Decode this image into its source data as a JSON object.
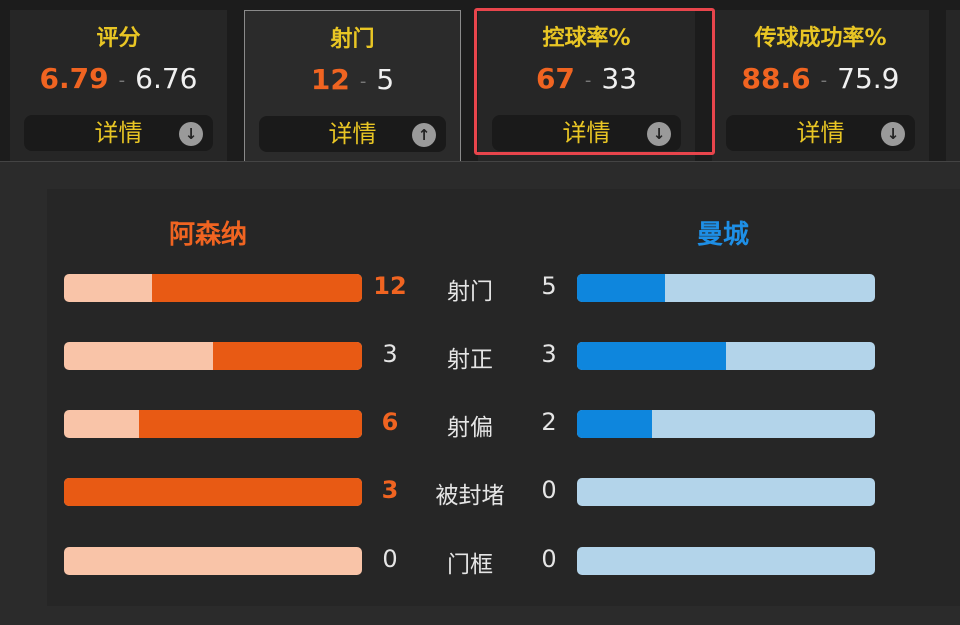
{
  "tabs": [
    {
      "title": "评分",
      "home": "6.79",
      "away": "6.76",
      "detail": "详情",
      "arrow": "down",
      "active": false
    },
    {
      "title": "射门",
      "home": "12",
      "away": "5",
      "detail": "详情",
      "arrow": "up",
      "active": true
    },
    {
      "title": "控球率%",
      "home": "67",
      "away": "33",
      "detail": "详情",
      "arrow": "down",
      "active": false,
      "highlighted": true
    },
    {
      "title": "传球成功率%",
      "home": "88.6",
      "away": "75.9",
      "detail": "详情",
      "arrow": "down",
      "active": false
    }
  ],
  "separator": "-",
  "detail": {
    "home_team": "阿森纳",
    "away_team": "曼城",
    "colors": {
      "home": "#e85a14",
      "home_light": "#f9c4a8",
      "away": "#0e86dd",
      "away_light": "#b3d4ea",
      "highlight": "#e8454c"
    },
    "rows": [
      {
        "label": "射门",
        "home": 12,
        "away": 5,
        "home_bold": true
      },
      {
        "label": "射正",
        "home": 3,
        "away": 3,
        "home_bold": false
      },
      {
        "label": "射偏",
        "home": 6,
        "away": 2,
        "home_bold": true
      },
      {
        "label": "被封堵",
        "home": 3,
        "away": 0,
        "home_bold": true
      },
      {
        "label": "门框",
        "home": 0,
        "away": 0,
        "home_bold": false
      }
    ]
  }
}
